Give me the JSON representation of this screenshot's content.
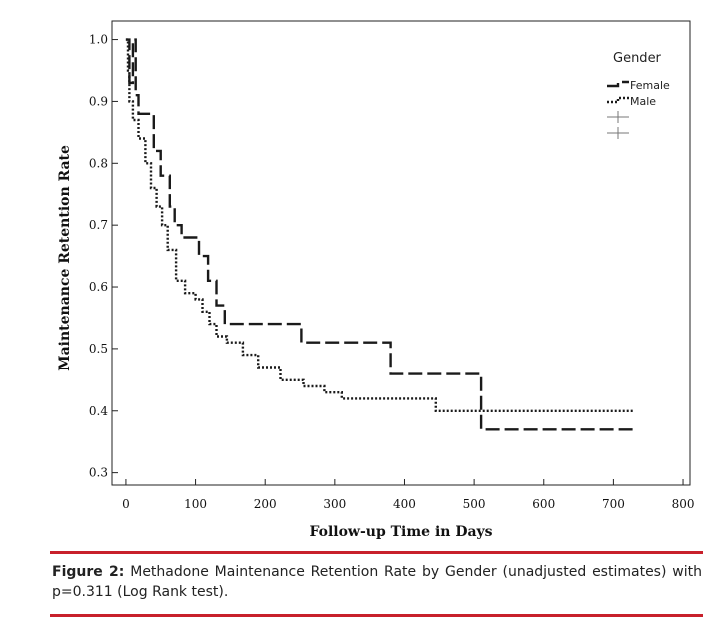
{
  "chart_data": {
    "type": "line",
    "title": "",
    "xlabel": "Follow-up Time in Days",
    "ylabel": "Maintenance Retention Rate",
    "xlim": [
      -20,
      810
    ],
    "ylim": [
      0.28,
      1.03
    ],
    "x_ticks": [
      "0",
      "100",
      "200",
      "300",
      "400",
      "500",
      "600",
      "700",
      "800"
    ],
    "y_ticks": [
      "0.3",
      "0.4",
      "0.5",
      "0.6",
      "0.7",
      "0.8",
      "0.9",
      "1.0"
    ],
    "legend": {
      "title": "Gender",
      "position": "top-right",
      "entries": [
        "Female",
        "Male"
      ]
    },
    "grid": false,
    "series": [
      {
        "name": "Female",
        "style": "dashed",
        "color": "#1a1a1a",
        "points": [
          [
            0,
            1.0
          ],
          [
            5,
            0.93
          ],
          [
            10,
            1.0
          ],
          [
            14,
            0.91
          ],
          [
            18,
            0.88
          ],
          [
            40,
            0.82
          ],
          [
            50,
            0.78
          ],
          [
            63,
            0.73
          ],
          [
            70,
            0.7
          ],
          [
            80,
            0.68
          ],
          [
            105,
            0.65
          ],
          [
            118,
            0.61
          ],
          [
            130,
            0.57
          ],
          [
            142,
            0.54
          ],
          [
            160,
            0.54
          ],
          [
            252,
            0.51
          ],
          [
            380,
            0.46
          ],
          [
            510,
            0.37
          ],
          [
            730,
            0.37
          ]
        ]
      },
      {
        "name": "Male",
        "style": "dotted",
        "color": "#1a1a1a",
        "points": [
          [
            0,
            1.0
          ],
          [
            3,
            0.95
          ],
          [
            5,
            0.9
          ],
          [
            10,
            0.87
          ],
          [
            18,
            0.84
          ],
          [
            28,
            0.8
          ],
          [
            36,
            0.76
          ],
          [
            44,
            0.73
          ],
          [
            52,
            0.7
          ],
          [
            60,
            0.66
          ],
          [
            72,
            0.61
          ],
          [
            85,
            0.59
          ],
          [
            100,
            0.58
          ],
          [
            110,
            0.56
          ],
          [
            120,
            0.54
          ],
          [
            130,
            0.52
          ],
          [
            145,
            0.51
          ],
          [
            168,
            0.49
          ],
          [
            190,
            0.47
          ],
          [
            222,
            0.45
          ],
          [
            255,
            0.44
          ],
          [
            285,
            0.43
          ],
          [
            310,
            0.42
          ],
          [
            380,
            0.42
          ],
          [
            445,
            0.4
          ],
          [
            520,
            0.4
          ],
          [
            730,
            0.4
          ]
        ]
      }
    ]
  },
  "caption": {
    "label": "Figure 2:",
    "text": " Methadone Maintenance Retention Rate by Gender (unadjusted estimates) with p=0.311 (Log Rank test)."
  }
}
